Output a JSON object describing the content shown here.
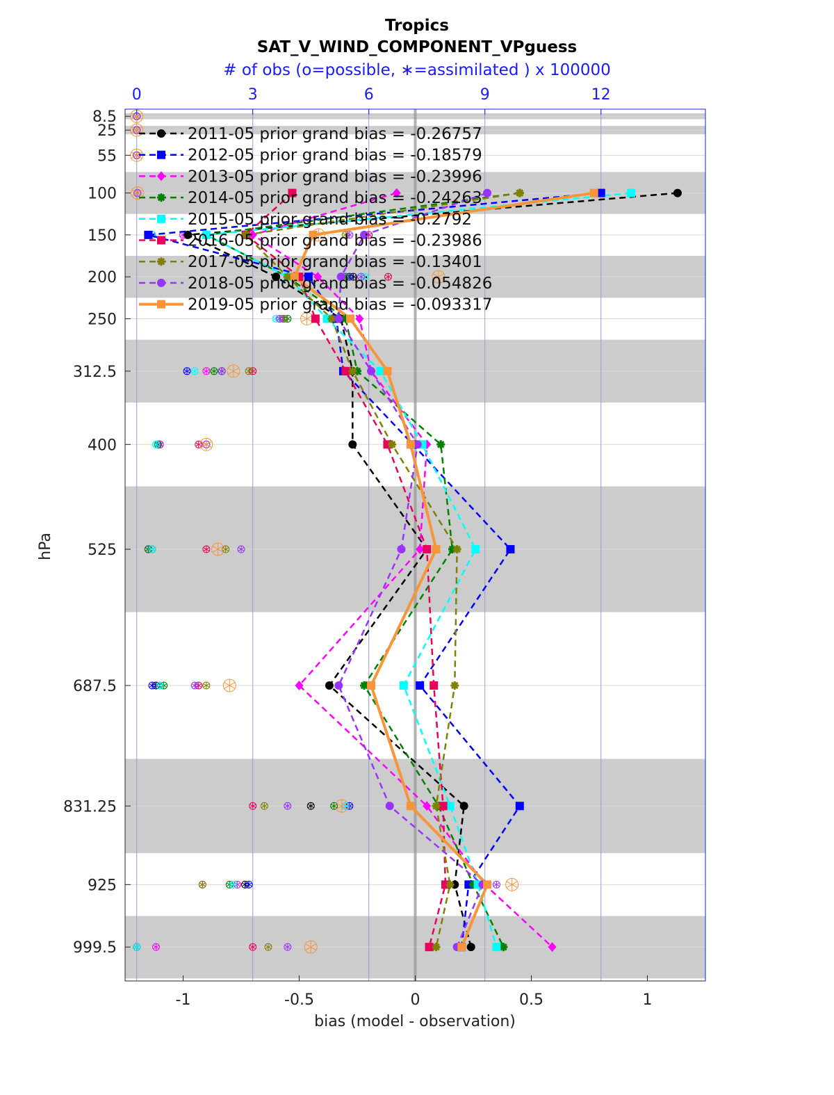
{
  "titles": {
    "line1": "Tropics",
    "line2": "SAT_V_WIND_COMPONENT_VPguess",
    "line3": "# of obs (o=possible, ∗=assimilated ) x 100000"
  },
  "chart_data": {
    "type": "line",
    "xlabel": "bias (model - observation)",
    "ylabel": "hPa",
    "xlim": [
      -1.25,
      1.25
    ],
    "x_ticks": [
      -1,
      -0.5,
      0,
      0.5,
      1
    ],
    "x_tick_labels": [
      "-1",
      "-0.5",
      "0",
      "0.5",
      "1"
    ],
    "top_axis": {
      "range": [
        -0.3,
        14.7
      ],
      "ticks": [
        0,
        3,
        6,
        9,
        12
      ],
      "tick_labels": [
        "0",
        "3",
        "6",
        "9",
        "12"
      ],
      "color": "#1a1aff"
    },
    "y_reversed": true,
    "ylim_hPa": [
      1040,
      0
    ],
    "levels": [
      8.5,
      25,
      55,
      100,
      150,
      200,
      250,
      312.5,
      400,
      525,
      687.5,
      831.25,
      925,
      999.5
    ],
    "level_tick_labels": [
      "8.5",
      "25",
      "55",
      "100",
      "150",
      "200",
      "250",
      "312.5",
      "400",
      "525",
      "687.5",
      "831.25",
      "925",
      "999.5"
    ],
    "shaded_layers_hPa": [
      [
        5,
        12
      ],
      [
        20,
        30
      ],
      [
        75,
        125
      ],
      [
        175,
        225
      ],
      [
        275,
        350
      ],
      [
        600,
        450
      ],
      [
        775,
        887.5
      ],
      [
        962.5,
        1037
      ]
    ],
    "zero_line_color": "#999999",
    "series": [
      {
        "name": "2011-05 prior grand bias = -0.26757",
        "color": "#000000",
        "marker": "circle",
        "line": "dashed",
        "bias": [
          null,
          null,
          null,
          1.13,
          -0.98,
          -0.6,
          -0.32,
          -0.27,
          -0.27,
          0.05,
          -0.37,
          0.21,
          0.17,
          0.24
        ],
        "obs_count": [
          0,
          0,
          0,
          0.02,
          0.4,
          5.6,
          3.8,
          2.2,
          0.6,
          0.4,
          0.5,
          4.5,
          2.8,
          0
        ]
      },
      {
        "name": "2012-05 prior grand bias = -0.18579",
        "color": "#0000ff",
        "marker": "square",
        "line": "dashed",
        "bias": [
          null,
          null,
          null,
          0.8,
          -1.15,
          -0.46,
          -0.34,
          -0.31,
          -0.01,
          0.41,
          0.02,
          0.45,
          0.23,
          0.2
        ],
        "obs_count": [
          0,
          0,
          0,
          0.02,
          0.4,
          5.5,
          3.8,
          1.3,
          0.55,
          0.3,
          0.4,
          5.5,
          2.9,
          0
        ]
      },
      {
        "name": "2013-05 prior grand bias = -0.23996",
        "color": "#ff00ff",
        "marker": "diamond",
        "line": "dashed",
        "bias": [
          null,
          null,
          null,
          -0.08,
          -0.7,
          -0.42,
          -0.24,
          -0.19,
          0.05,
          0.02,
          -0.5,
          0.05,
          0.3,
          0.59
        ],
        "obs_count": [
          0,
          0,
          0,
          0.02,
          1.2,
          5.3,
          3.7,
          1.8,
          0.6,
          0.3,
          0.6,
          5.4,
          2.6,
          0.5
        ]
      },
      {
        "name": "2014-05 prior grand bias = -0.24263",
        "color": "#008000",
        "marker": "star",
        "line": "dashed",
        "bias": [
          null,
          null,
          null,
          0.45,
          -0.9,
          -0.55,
          -0.3,
          -0.25,
          0.11,
          0.16,
          -0.22,
          0.1,
          0.25,
          0.38
        ],
        "obs_count": [
          0,
          0,
          0,
          0.02,
          0.3,
          5.4,
          3.9,
          2.0,
          0.55,
          0.3,
          0.7,
          5.1,
          2.4,
          0
        ]
      },
      {
        "name": "2015-05 prior grand bias = -0.2792",
        "color": "#00ffff",
        "marker": "square",
        "line": "dashed",
        "bias": [
          null,
          null,
          null,
          0.93,
          -0.9,
          -0.55,
          -0.38,
          -0.15,
          0.03,
          0.26,
          -0.05,
          0.15,
          0.27,
          0.35
        ],
        "obs_count": [
          0,
          0,
          0,
          0.02,
          0.4,
          5.9,
          3.6,
          1.5,
          0.5,
          0.4,
          0.6,
          5.4,
          2.5,
          0
        ]
      },
      {
        "name": "2016-05 prior grand bias = -0.23986",
        "color": "#e8005a",
        "marker": "square",
        "line": "dashed",
        "bias": [
          null,
          null,
          null,
          -0.53,
          -0.73,
          -0.5,
          -0.43,
          -0.3,
          -0.12,
          0.05,
          0.08,
          0.12,
          0.13,
          0.06
        ],
        "obs_count": [
          0,
          0,
          0,
          0.02,
          6.0,
          6.5,
          5.3,
          3.0,
          1.6,
          1.8,
          1.6,
          3.0,
          1.7,
          3.0
        ]
      },
      {
        "name": "2017-05 prior grand bias = -0.13401",
        "color": "#808000",
        "marker": "star",
        "line": "dashed",
        "bias": [
          null,
          null,
          null,
          0.45,
          -0.73,
          -0.55,
          -0.36,
          -0.27,
          -0.1,
          0.18,
          0.17,
          0.09,
          0.15,
          0.09
        ],
        "obs_count": [
          0,
          0,
          0,
          0.02,
          5.4,
          5.3,
          3.8,
          2.9,
          1.8,
          2.3,
          1.8,
          3.3,
          1.7,
          3.4
        ]
      },
      {
        "name": "2018-05 prior grand bias = -0.054826",
        "color": "#9933ff",
        "marker": "circle",
        "line": "dashed",
        "bias": [
          null,
          null,
          null,
          0.31,
          -0.22,
          -0.32,
          -0.33,
          -0.19,
          0.01,
          -0.06,
          -0.33,
          -0.11,
          0.29,
          0.18
        ],
        "obs_count": [
          0,
          0,
          0,
          0.02,
          5.5,
          5.8,
          3.7,
          2.2,
          1.8,
          2.7,
          1.5,
          3.9,
          9.3,
          3.9
        ]
      },
      {
        "name": "2019-05 prior grand bias = -0.093317",
        "color": "#f7953a",
        "marker": "square",
        "line": "solid",
        "bias": [
          null,
          null,
          null,
          0.77,
          -0.44,
          -0.52,
          -0.28,
          -0.12,
          -0.02,
          0.09,
          -0.19,
          -0.02,
          0.31,
          0.2
        ],
        "obs_count": [
          0,
          0,
          0,
          0.02,
          4.7,
          7.8,
          4.4,
          2.5,
          1.8,
          2.1,
          2.4,
          5.3,
          9.7,
          4.5
        ]
      }
    ],
    "legend_position": "top-left",
    "grid": true
  }
}
